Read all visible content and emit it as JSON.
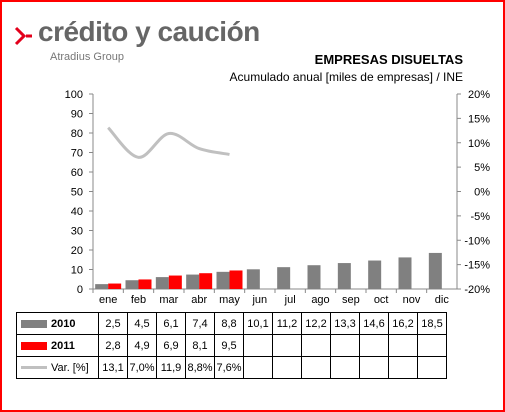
{
  "logo": {
    "name": "crédito y caución",
    "tagline": "Atradius Group"
  },
  "chart_data": {
    "type": "bar",
    "title": "EMPRESAS DISUELTAS",
    "subtitle": "Acumulado anual [miles de empresas] / INE",
    "categories": [
      "ene",
      "feb",
      "mar",
      "abr",
      "may",
      "jun",
      "jul",
      "ago",
      "sep",
      "oct",
      "nov",
      "dic"
    ],
    "series": [
      {
        "name": "2010",
        "type": "bar",
        "axis": "left",
        "color": "#808080",
        "values": [
          2.5,
          4.5,
          6.1,
          7.4,
          8.8,
          10.1,
          11.2,
          12.2,
          13.3,
          14.6,
          16.2,
          18.5
        ]
      },
      {
        "name": "2011",
        "type": "bar",
        "axis": "left",
        "color": "#ff0000",
        "values": [
          2.8,
          4.9,
          6.9,
          8.1,
          9.5,
          null,
          null,
          null,
          null,
          null,
          null,
          null
        ]
      },
      {
        "name": "Var. [%]",
        "type": "line",
        "axis": "right",
        "color": "#c0c0c0",
        "values": [
          13.1,
          7.0,
          11.9,
          8.8,
          7.6,
          null,
          null,
          null,
          null,
          null,
          null,
          null
        ]
      }
    ],
    "y_left": {
      "min": 0,
      "max": 100,
      "step": 10
    },
    "y_right": {
      "min": -20,
      "max": 20,
      "step": 5
    },
    "y_left_ticks": [
      "0",
      "10",
      "20",
      "30",
      "40",
      "50",
      "60",
      "70",
      "80",
      "90",
      "100"
    ],
    "y_right_ticks": [
      "-20%",
      "-15%",
      "-10%",
      "-5%",
      "0%",
      "5%",
      "10%",
      "15%",
      "20%"
    ],
    "grid": false,
    "legend": "data table below chart"
  },
  "table": {
    "rows": [
      {
        "label": "2010",
        "cells": [
          "2,5",
          "4,5",
          "6,1",
          "7,4",
          "8,8",
          "10,1",
          "11,2",
          "12,2",
          "13,3",
          "14,6",
          "16,2",
          "18,5"
        ]
      },
      {
        "label": "2011",
        "cells": [
          "2,8",
          "4,9",
          "6,9",
          "8,1",
          "9,5",
          "",
          "",
          "",
          "",
          "",
          "",
          ""
        ]
      },
      {
        "label": "Var. [%]",
        "cells": [
          "13,1",
          "7,0%",
          "11,9",
          "8,8%",
          "7,6%",
          "",
          "",
          "",
          "",
          "",
          "",
          ""
        ]
      }
    ]
  }
}
